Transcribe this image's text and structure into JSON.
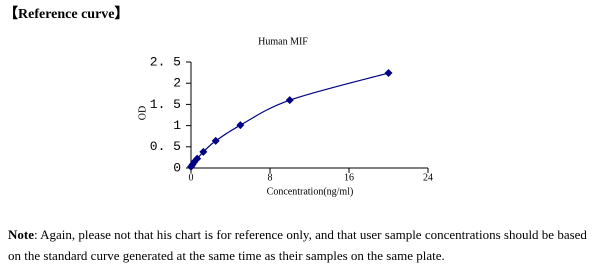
{
  "header": {
    "title": "【Reference curve】"
  },
  "chart_data": {
    "type": "line",
    "title": "Human MIF",
    "x_label": "Concentration(ng/ml)",
    "y_label": "OD",
    "x": [
      0,
      0.156,
      0.3125,
      0.625,
      1.25,
      2.5,
      5,
      10,
      20
    ],
    "series": [
      {
        "color": "#000080",
        "values": [
          0.03,
          0.08,
          0.14,
          0.22,
          0.38,
          0.64,
          1.01,
          1.6,
          2.24
        ]
      }
    ],
    "xlim": [
      0,
      24
    ],
    "xticks": [
      0,
      8,
      16,
      24
    ],
    "ylim": [
      0,
      2.5
    ],
    "yticks": [
      0,
      {
        "value": 0.5,
        "label": "0. 5"
      },
      1,
      {
        "value": 1.5,
        "label": "1. 5"
      },
      2,
      {
        "value": 2.5,
        "label": "2. 5"
      }
    ]
  },
  "note": {
    "label": "Note",
    "text": ": Again, please not that his chart is for reference only, and that user sample concentrations should be based on the standard curve generated at the same time as their samples on the same plate."
  }
}
